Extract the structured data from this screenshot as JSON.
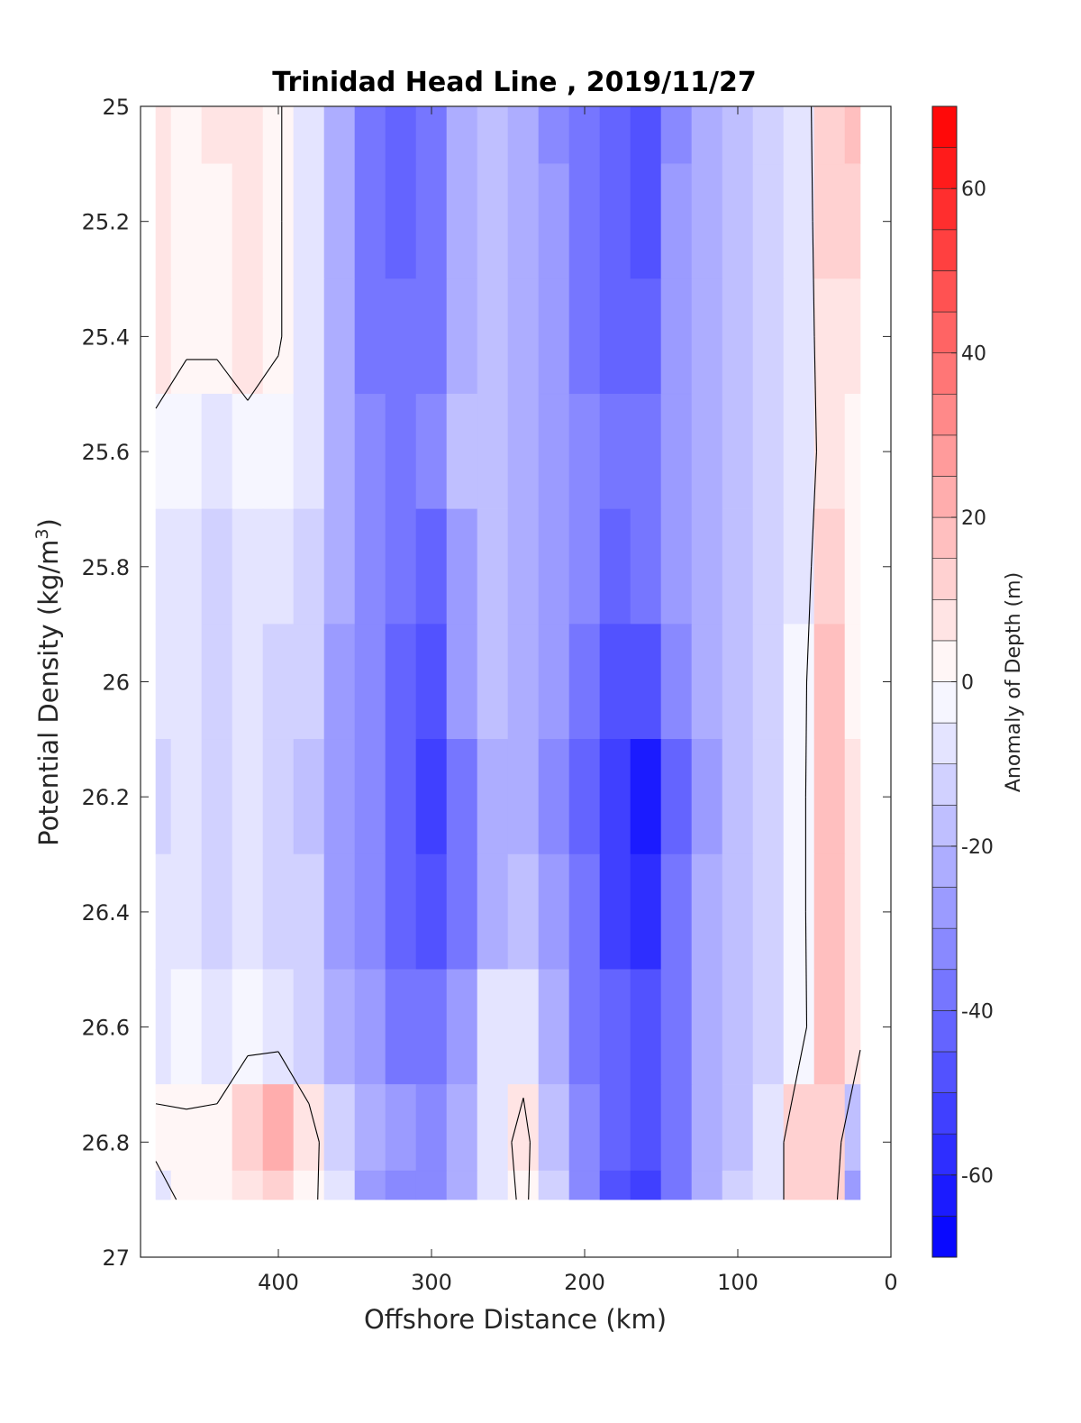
{
  "chart_data": {
    "type": "heatmap",
    "title": "Trinidad Head Line , 2019/11/27",
    "xlabel": "Offshore Distance (km)",
    "ylabel_main": "Potential Density (kg/m",
    "ylabel_sup": "3",
    "ylabel_close": ")",
    "colorbar_label": "Anomaly of Depth (m)",
    "xlim": [
      490,
      0
    ],
    "ylim": [
      25,
      27
    ],
    "x_reversed": true,
    "y_reversed": true,
    "x_ticks": [
      400,
      300,
      200,
      100,
      0
    ],
    "x_tick_labels": [
      "400",
      "300",
      "200",
      "100",
      "0"
    ],
    "y_ticks": [
      25,
      25.2,
      25.4,
      25.6,
      25.8,
      26,
      26.2,
      26.4,
      26.6,
      26.8,
      27
    ],
    "y_tick_labels": [
      "25",
      "25.2",
      "25.4",
      "25.6",
      "25.8",
      "26",
      "26.2",
      "26.4",
      "26.6",
      "26.8",
      "27"
    ],
    "colorbar_range": [
      -70,
      70
    ],
    "colorbar_step": 5,
    "colorbar_ticks": [
      60,
      40,
      20,
      0,
      -20,
      -40,
      -60
    ],
    "colorbar_tick_labels": [
      "60",
      "40",
      "20",
      "0",
      "-20",
      "-40",
      "-60"
    ],
    "colormap": {
      "negative": "#0000ff",
      "zero": "#ffffff",
      "positive": "#ff0000"
    },
    "data_extent": {
      "x": [
        480,
        20
      ],
      "y": [
        25,
        26.9
      ]
    },
    "stations_x": [
      480,
      460,
      440,
      420,
      400,
      380,
      360,
      340,
      320,
      300,
      280,
      260,
      240,
      220,
      200,
      180,
      160,
      140,
      120,
      100,
      80,
      60,
      40,
      20
    ],
    "density_y": [
      25.0,
      25.2,
      25.4,
      25.6,
      25.8,
      26.0,
      26.2,
      26.4,
      26.6,
      26.8,
      26.9
    ],
    "values": [
      [
        8,
        2,
        5,
        8,
        1,
        -8,
        -25,
        -38,
        -45,
        -38,
        -22,
        -18,
        -25,
        -32,
        -40,
        -45,
        -50,
        -32,
        -22,
        -20,
        -15,
        -8,
        12,
        15
      ],
      [
        6,
        2,
        3,
        6,
        1,
        -8,
        -25,
        -38,
        -42,
        -38,
        -22,
        -18,
        -25,
        -30,
        -40,
        -45,
        -48,
        -30,
        -22,
        -20,
        -15,
        -8,
        10,
        10
      ],
      [
        5,
        1,
        2,
        5,
        1,
        -8,
        -25,
        -38,
        -40,
        -36,
        -22,
        -18,
        -25,
        -30,
        -38,
        -42,
        -45,
        -28,
        -22,
        -20,
        -15,
        -8,
        8,
        5
      ],
      [
        -3,
        -4,
        -8,
        -4,
        -5,
        -10,
        -25,
        -35,
        -38,
        -32,
        -20,
        -18,
        -25,
        -30,
        -35,
        -40,
        -38,
        -28,
        -22,
        -20,
        -15,
        -8,
        6,
        2
      ],
      [
        -8,
        -7,
        -12,
        -6,
        -8,
        -12,
        -25,
        -34,
        -40,
        -42,
        -30,
        -20,
        -22,
        -28,
        -35,
        -42,
        -38,
        -28,
        -22,
        -20,
        -15,
        -8,
        12,
        2
      ],
      [
        -10,
        -8,
        -14,
        -10,
        -12,
        -15,
        -26,
        -34,
        -42,
        -48,
        -30,
        -20,
        -22,
        -28,
        -38,
        -48,
        -50,
        -32,
        -24,
        -18,
        -12,
        -5,
        15,
        4
      ],
      [
        -12,
        -10,
        -15,
        -10,
        -15,
        -18,
        -28,
        -35,
        -45,
        -55,
        -38,
        -25,
        -25,
        -32,
        -42,
        -55,
        -62,
        -42,
        -26,
        -18,
        -12,
        -5,
        18,
        6
      ],
      [
        -10,
        -7,
        -12,
        -8,
        -12,
        -15,
        -26,
        -32,
        -42,
        -50,
        -38,
        -22,
        -20,
        -28,
        -40,
        -55,
        -58,
        -40,
        -24,
        -18,
        -12,
        -5,
        18,
        5
      ],
      [
        -6,
        -5,
        -8,
        -4,
        -6,
        -12,
        -22,
        -30,
        -38,
        -38,
        -30,
        -10,
        -8,
        -22,
        -38,
        -45,
        -48,
        -38,
        -24,
        -18,
        -12,
        -5,
        15,
        5
      ],
      [
        3,
        2,
        4,
        12,
        22,
        6,
        -12,
        -25,
        -30,
        -32,
        -25,
        -8,
        5,
        -18,
        -35,
        -45,
        -48,
        -38,
        -24,
        -16,
        -10,
        10,
        12,
        -20
      ],
      [
        -6,
        3,
        3,
        8,
        12,
        4,
        -10,
        -28,
        -32,
        -32,
        -25,
        -10,
        3,
        -15,
        -34,
        -48,
        -52,
        -36,
        -22,
        -15,
        -10,
        10,
        10,
        -30
      ]
    ]
  }
}
